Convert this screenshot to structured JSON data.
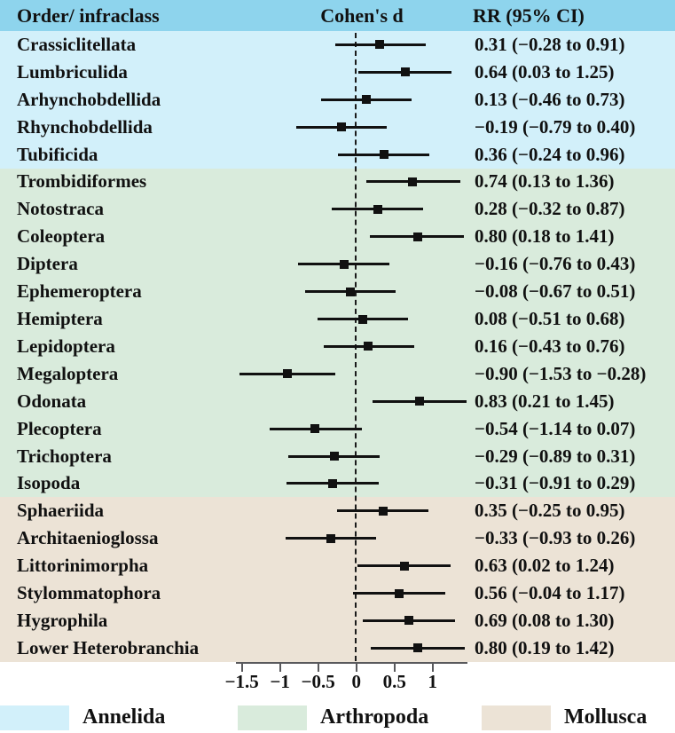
{
  "header": {
    "order_col": "Order/ infraclass",
    "cohens_d_col": "Cohen's d",
    "rr_col": "RR (95% CI)"
  },
  "chart_data": {
    "type": "forest",
    "title": "",
    "xlabel": "Cohen's d",
    "value_column_label": "RR (95% CI)",
    "axis": {
      "ticks": [
        -1.5,
        -1,
        -0.5,
        0,
        0.5,
        1
      ],
      "tick_labels": [
        "−1.5",
        "−1",
        "−0.5",
        "0",
        "0.5",
        "1"
      ],
      "xlim": [
        -1.57,
        1.46
      ],
      "zero_line": 0,
      "grid": false
    },
    "groups": [
      {
        "name": "Annelida",
        "color": "#D2F0FA",
        "rows": [
          {
            "label": "Crassiclitellata",
            "d": 0.31,
            "lo": -0.28,
            "hi": 0.91,
            "rr": "0.31 (−0.28 to 0.91)"
          },
          {
            "label": "Lumbriculida",
            "d": 0.64,
            "lo": 0.03,
            "hi": 1.25,
            "rr": "0.64 (0.03 to 1.25)"
          },
          {
            "label": "Arhynchobdellida",
            "d": 0.13,
            "lo": -0.46,
            "hi": 0.73,
            "rr": "0.13 (−0.46 to 0.73)"
          },
          {
            "label": "Rhynchobdellida",
            "d": -0.19,
            "lo": -0.79,
            "hi": 0.4,
            "rr": "−0.19 (−0.79 to 0.40)"
          },
          {
            "label": "Tubificida",
            "d": 0.36,
            "lo": -0.24,
            "hi": 0.96,
            "rr": "0.36 (−0.24 to 0.96)"
          }
        ]
      },
      {
        "name": "Arthropoda",
        "color": "#D9EBDC",
        "rows": [
          {
            "label": "Trombidiformes",
            "d": 0.74,
            "lo": 0.13,
            "hi": 1.36,
            "rr": "0.74 (0.13 to 1.36)"
          },
          {
            "label": "Notostraca",
            "d": 0.28,
            "lo": -0.32,
            "hi": 0.87,
            "rr": "0.28 (−0.32 to 0.87)"
          },
          {
            "label": "Coleoptera",
            "d": 0.8,
            "lo": 0.18,
            "hi": 1.41,
            "rr": "0.80 (0.18 to 1.41)"
          },
          {
            "label": "Diptera",
            "d": -0.16,
            "lo": -0.76,
            "hi": 0.43,
            "rr": "−0.16 (−0.76 to 0.43)"
          },
          {
            "label": "Ephemeroptera",
            "d": -0.08,
            "lo": -0.67,
            "hi": 0.51,
            "rr": "−0.08 (−0.67 to 0.51)"
          },
          {
            "label": "Hemiptera",
            "d": 0.08,
            "lo": -0.51,
            "hi": 0.68,
            "rr": "0.08 (−0.51 to 0.68)"
          },
          {
            "label": "Lepidoptera",
            "d": 0.16,
            "lo": -0.43,
            "hi": 0.76,
            "rr": "0.16 (−0.43 to 0.76)"
          },
          {
            "label": "Megaloptera",
            "d": -0.9,
            "lo": -1.53,
            "hi": -0.28,
            "rr": "−0.90 (−1.53 to −0.28)"
          },
          {
            "label": "Odonata",
            "d": 0.83,
            "lo": 0.21,
            "hi": 1.45,
            "rr": "0.83 (0.21 to 1.45)"
          },
          {
            "label": "Plecoptera",
            "d": -0.54,
            "lo": -1.14,
            "hi": 0.07,
            "rr": "−0.54 (−1.14 to 0.07)"
          },
          {
            "label": "Trichoptera",
            "d": -0.29,
            "lo": -0.89,
            "hi": 0.31,
            "rr": "−0.29 (−0.89 to 0.31)"
          },
          {
            "label": "Isopoda",
            "d": -0.31,
            "lo": -0.91,
            "hi": 0.29,
            "rr": "−0.31 (−0.91 to 0.29)"
          }
        ]
      },
      {
        "name": "Mollusca",
        "color": "#ECE3D6",
        "rows": [
          {
            "label": "Sphaeriida",
            "d": 0.35,
            "lo": -0.25,
            "hi": 0.95,
            "rr": "0.35 (−0.25 to 0.95)"
          },
          {
            "label": "Architaenioglossa",
            "d": -0.33,
            "lo": -0.93,
            "hi": 0.26,
            "rr": "−0.33 (−0.93 to 0.26)"
          },
          {
            "label": "Littorinimorpha",
            "d": 0.63,
            "lo": 0.02,
            "hi": 1.24,
            "rr": "0.63 (0.02 to 1.24)"
          },
          {
            "label": "Stylommatophora",
            "d": 0.56,
            "lo": -0.04,
            "hi": 1.17,
            "rr": "0.56 (−0.04 to 1.17)"
          },
          {
            "label": "Hygrophila",
            "d": 0.69,
            "lo": 0.08,
            "hi": 1.3,
            "rr": "0.69 (0.08 to 1.30)"
          },
          {
            "label": "Lower Heterobranchia",
            "d": 0.8,
            "lo": 0.19,
            "hi": 1.42,
            "rr": "0.80 (0.19 to 1.42)"
          }
        ]
      }
    ]
  },
  "legend": {
    "items": [
      {
        "label": "Annelida",
        "color": "#D2F0FA"
      },
      {
        "label": "Arthropoda",
        "color": "#D9EBDC"
      },
      {
        "label": "Mollusca",
        "color": "#ECE3D6"
      }
    ]
  },
  "colors": {
    "header_bg": "#8ED4ED",
    "text": "#111111",
    "marker_line": "#111111",
    "axis": "#59595c"
  }
}
